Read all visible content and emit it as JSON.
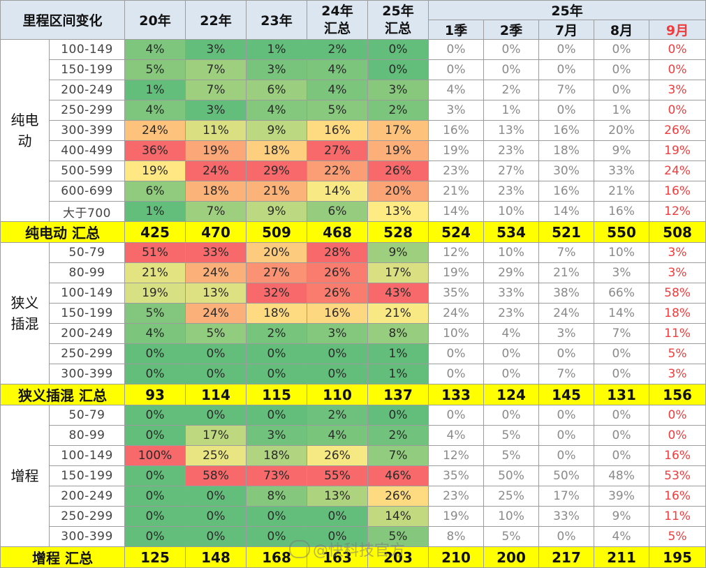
{
  "chart_data": {
    "type": "table",
    "title": "",
    "header": {
      "corner": "里程区间变化",
      "year_cols": [
        "20年",
        "22年",
        "23年",
        "24年 汇总",
        "25年 汇总"
      ],
      "group_25": "25年",
      "sub_cols": [
        "1季",
        "2季",
        "7月",
        "8月",
        "9月"
      ]
    },
    "groups": [
      {
        "name": "纯电动",
        "rows": [
          {
            "range": "100-149",
            "values": [
              "4%",
              "3%",
              "1%",
              "2%",
              "0%",
              "0%",
              "0%",
              "0%",
              "0%",
              "0%"
            ]
          },
          {
            "range": "150-199",
            "values": [
              "5%",
              "7%",
              "3%",
              "4%",
              "0%",
              "0%",
              "0%",
              "0%",
              "0%",
              "0%"
            ]
          },
          {
            "range": "200-249",
            "values": [
              "1%",
              "7%",
              "6%",
              "4%",
              "3%",
              "4%",
              "2%",
              "7%",
              "0%",
              "3%"
            ]
          },
          {
            "range": "250-299",
            "values": [
              "4%",
              "3%",
              "4%",
              "5%",
              "2%",
              "3%",
              "1%",
              "0%",
              "1%",
              "0%"
            ]
          },
          {
            "range": "300-399",
            "values": [
              "24%",
              "11%",
              "9%",
              "16%",
              "17%",
              "16%",
              "13%",
              "16%",
              "20%",
              "26%"
            ]
          },
          {
            "range": "400-499",
            "values": [
              "36%",
              "19%",
              "18%",
              "27%",
              "19%",
              "19%",
              "23%",
              "18%",
              "9%",
              "19%"
            ]
          },
          {
            "range": "500-599",
            "values": [
              "19%",
              "24%",
              "29%",
              "22%",
              "26%",
              "23%",
              "27%",
              "30%",
              "33%",
              "24%"
            ]
          },
          {
            "range": "600-699",
            "values": [
              "6%",
              "18%",
              "21%",
              "14%",
              "20%",
              "21%",
              "23%",
              "16%",
              "21%",
              "16%"
            ]
          },
          {
            "range": "大于700",
            "values": [
              "1%",
              "7%",
              "9%",
              "6%",
              "13%",
              "14%",
              "10%",
              "14%",
              "16%",
              "12%"
            ]
          }
        ],
        "total_label": "纯电动 汇总",
        "totals": [
          425,
          470,
          509,
          468,
          528,
          524,
          534,
          521,
          550,
          508
        ]
      },
      {
        "name": "狭义插混",
        "rows": [
          {
            "range": "50-79",
            "values": [
              "51%",
              "33%",
              "20%",
              "28%",
              "9%",
              "12%",
              "10%",
              "7%",
              "10%",
              "3%"
            ]
          },
          {
            "range": "80-99",
            "values": [
              "21%",
              "24%",
              "27%",
              "26%",
              "17%",
              "19%",
              "29%",
              "21%",
              "3%",
              "3%"
            ]
          },
          {
            "range": "100-149",
            "values": [
              "19%",
              "13%",
              "32%",
              "26%",
              "43%",
              "35%",
              "33%",
              "38%",
              "66%",
              "58%"
            ]
          },
          {
            "range": "150-199",
            "values": [
              "5%",
              "24%",
              "18%",
              "16%",
              "21%",
              "24%",
              "23%",
              "24%",
              "14%",
              "18%"
            ]
          },
          {
            "range": "200-249",
            "values": [
              "4%",
              "5%",
              "2%",
              "3%",
              "8%",
              "10%",
              "4%",
              "3%",
              "7%",
              "11%"
            ]
          },
          {
            "range": "250-299",
            "values": [
              "0%",
              "0%",
              "0%",
              "0%",
              "1%",
              "0%",
              "0%",
              "0%",
              "0%",
              "5%"
            ]
          },
          {
            "range": "300-399",
            "values": [
              "0%",
              "0%",
              "0%",
              "0%",
              "1%",
              "0%",
              "0%",
              "7%",
              "0%",
              "3%"
            ]
          }
        ],
        "total_label": "狭义插混 汇总",
        "totals": [
          93,
          114,
          115,
          110,
          137,
          133,
          124,
          145,
          131,
          156
        ]
      },
      {
        "name": "增程",
        "rows": [
          {
            "range": "50-79",
            "values": [
              "0%",
              "0%",
              "0%",
              "2%",
              "0%",
              "0%",
              "0%",
              "0%",
              "0%",
              "0%"
            ]
          },
          {
            "range": "80-99",
            "values": [
              "0%",
              "17%",
              "3%",
              "4%",
              "2%",
              "4%",
              "5%",
              "0%",
              "0%",
              "0%"
            ]
          },
          {
            "range": "100-149",
            "values": [
              "100%",
              "25%",
              "18%",
              "26%",
              "7%",
              "12%",
              "5%",
              "0%",
              "0%",
              "16%"
            ]
          },
          {
            "range": "150-199",
            "values": [
              "0%",
              "58%",
              "73%",
              "55%",
              "46%",
              "35%",
              "50%",
              "50%",
              "48%",
              "53%"
            ]
          },
          {
            "range": "200-249",
            "values": [
              "0%",
              "0%",
              "8%",
              "13%",
              "26%",
              "23%",
              "25%",
              "17%",
              "39%",
              "16%"
            ]
          },
          {
            "range": "250-299",
            "values": [
              "0%",
              "0%",
              "0%",
              "0%",
              "14%",
              "19%",
              "10%",
              "33%",
              "9%",
              "11%"
            ]
          },
          {
            "range": "300-399",
            "values": [
              "0%",
              "0%",
              "0%",
              "0%",
              "5%",
              "8%",
              "5%",
              "0%",
              "4%",
              "5%"
            ]
          }
        ],
        "total_label": "增程 汇总",
        "totals": [
          125,
          148,
          168,
          163,
          203,
          210,
          200,
          217,
          211,
          195
        ]
      }
    ],
    "colors": {
      "header_bg": "#dce6f1",
      "total_bg": "#ffff00",
      "latest_month_text": "#f03c3c",
      "heat_low": "#63be7b",
      "heat_mid": "#ffeb84",
      "heat_high": "#f8696b"
    }
  },
  "watermark": "@快科技官方",
  "watermark_icon": "weibo-icon"
}
